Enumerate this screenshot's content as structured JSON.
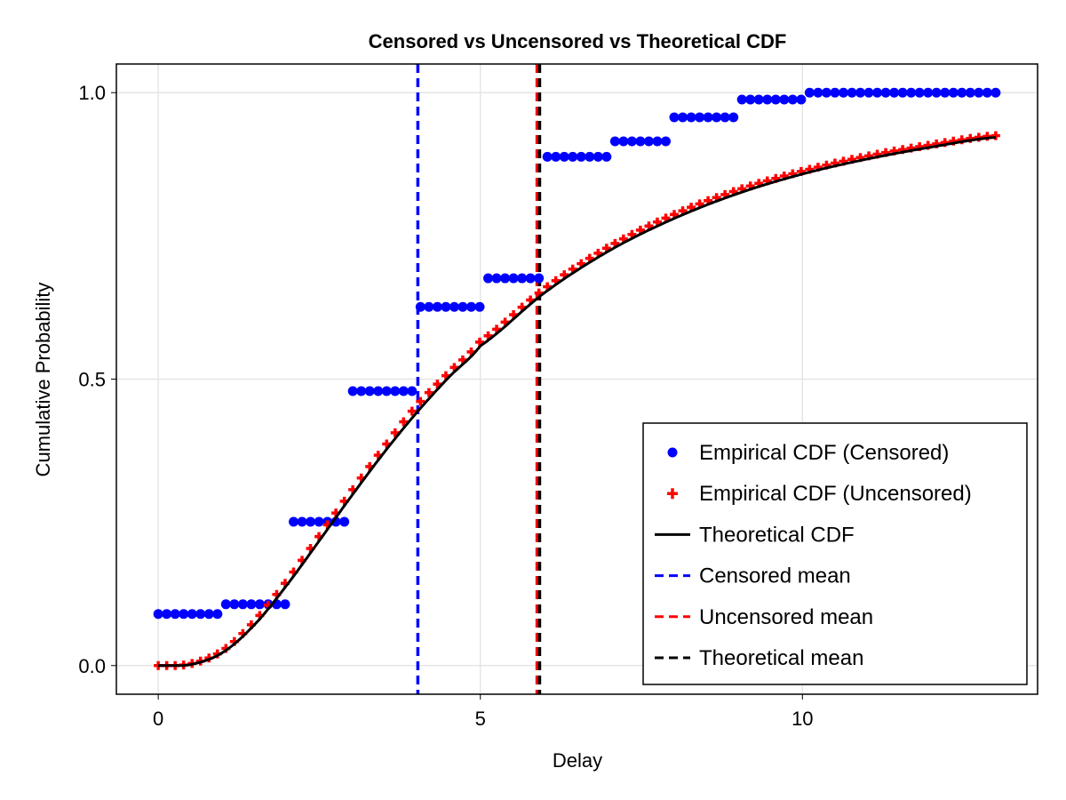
{
  "chart_data": {
    "type": "scatter",
    "title": "Censored vs Uncensored vs Theoretical CDF",
    "xlabel": "Delay",
    "ylabel": "Cumulative Probability",
    "xlim": [
      -0.65,
      13.65
    ],
    "ylim": [
      -0.05,
      1.05
    ],
    "xticks": [
      0,
      5,
      10
    ],
    "xtick_labels": [
      "0",
      "5",
      "10"
    ],
    "yticks": [
      0,
      0.5,
      1
    ],
    "ytick_labels": [
      "0.0",
      "0.5",
      "1.0"
    ],
    "grid": true,
    "legend_position": "bottom-right",
    "x_points": {
      "start": 0,
      "stop": 13,
      "count": 100
    },
    "series": [
      {
        "name": "Empirical CDF (Censored)",
        "kind": "scatter",
        "marker": "circle",
        "color": "#0000ff",
        "step_intervals": [
          0,
          1,
          2,
          3,
          4,
          5,
          6,
          7,
          8,
          9,
          10,
          11,
          12,
          13
        ],
        "step_values": [
          0.09,
          0.107,
          0.251,
          0.479,
          0.626,
          0.676,
          0.888,
          0.915,
          0.957,
          0.988,
          1.0,
          1.0,
          1.0,
          1.0
        ]
      },
      {
        "name": "Empirical CDF (Uncensored)",
        "kind": "scatter",
        "marker": "cross",
        "color": "#ff0000",
        "x": [
          0,
          0.5,
          1,
          1.5,
          2,
          2.5,
          3,
          3.5,
          4,
          4.5,
          5,
          6,
          7,
          8,
          9,
          10,
          11,
          12,
          13
        ],
        "y": [
          0,
          0.003,
          0.026,
          0.078,
          0.148,
          0.226,
          0.304,
          0.38,
          0.452,
          0.51,
          0.566,
          0.658,
          0.731,
          0.787,
          0.83,
          0.863,
          0.889,
          0.909,
          0.925
        ]
      },
      {
        "name": "Theoretical CDF",
        "kind": "line",
        "color": "#000000",
        "x": [
          0,
          0.5,
          1,
          1.5,
          2,
          2.5,
          3,
          3.5,
          4,
          4.5,
          5,
          6,
          7,
          8,
          9,
          10,
          11,
          12,
          13
        ],
        "y": [
          0,
          0.0017,
          0.0228,
          0.072,
          0.141,
          0.218,
          0.296,
          0.371,
          0.44,
          0.502,
          0.558,
          0.651,
          0.724,
          0.78,
          0.824,
          0.858,
          0.884,
          0.905,
          0.922
        ]
      },
      {
        "name": "Censored mean",
        "kind": "vline",
        "dashed": true,
        "color": "#0000ff",
        "x": 4.03
      },
      {
        "name": "Uncensored mean",
        "kind": "vline",
        "dashed": true,
        "color": "#ff0000",
        "x": 5.88
      },
      {
        "name": "Theoretical mean",
        "kind": "vline",
        "dashed": true,
        "color": "#000000",
        "x": 5.92
      }
    ]
  }
}
